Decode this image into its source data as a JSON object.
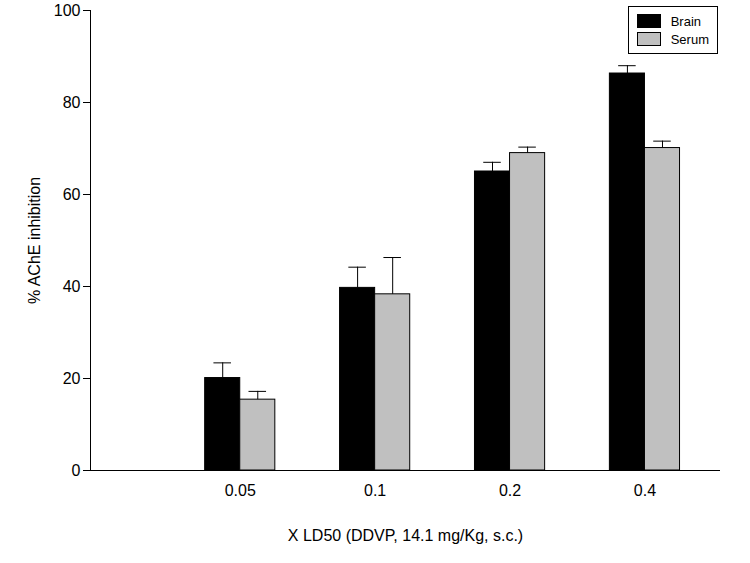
{
  "chart_data": {
    "type": "bar",
    "categories": [
      "0.05",
      "0.1",
      "0.2",
      "0.4"
    ],
    "x_label": "X LD50 (DDVP, 14.1 mg/Kg, s.c.)",
    "y_label": "% AChE inhibition",
    "series": [
      {
        "name": "Brain",
        "color": "#000000",
        "values": [
          20.1,
          39.7,
          65.0,
          86.3
        ],
        "errors": [
          3.3,
          4.5,
          2.0,
          1.7
        ]
      },
      {
        "name": "Serum",
        "color": "#c0c0c0",
        "values": [
          15.4,
          38.3,
          69.0,
          70.1
        ],
        "errors": [
          1.8,
          8.0,
          1.3,
          1.5
        ]
      }
    ],
    "ylim": [
      0,
      100
    ],
    "yticks": [
      0,
      20,
      40,
      60,
      80,
      100
    ],
    "legend": "top-right"
  }
}
